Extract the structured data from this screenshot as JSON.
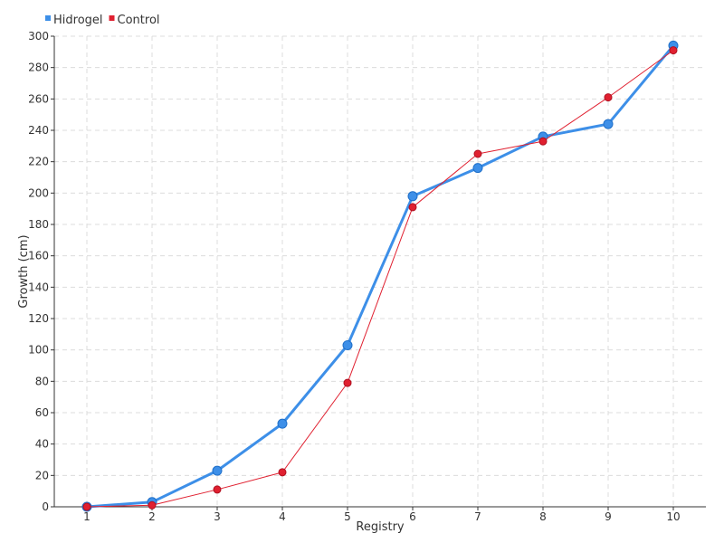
{
  "chart_data": {
    "type": "line",
    "title": "",
    "xlabel": "Registry",
    "ylabel": "Growth (cm)",
    "x": [
      1,
      2,
      3,
      4,
      5,
      6,
      7,
      8,
      9,
      10
    ],
    "xlim": [
      0.5,
      10.5
    ],
    "ylim": [
      0,
      300
    ],
    "yticks": [
      0,
      20,
      40,
      60,
      80,
      100,
      120,
      140,
      160,
      180,
      200,
      220,
      240,
      260,
      280,
      300
    ],
    "grid": true,
    "legend_position": "top-left",
    "series": [
      {
        "name": "Hidrogel",
        "color": "#3d8fe8",
        "values": [
          0,
          3,
          23,
          53,
          103,
          198,
          216,
          236,
          244,
          294
        ]
      },
      {
        "name": "Control",
        "color": "#e02030",
        "values": [
          0,
          1,
          11,
          22,
          79,
          191,
          225,
          233,
          261,
          291
        ]
      }
    ]
  }
}
